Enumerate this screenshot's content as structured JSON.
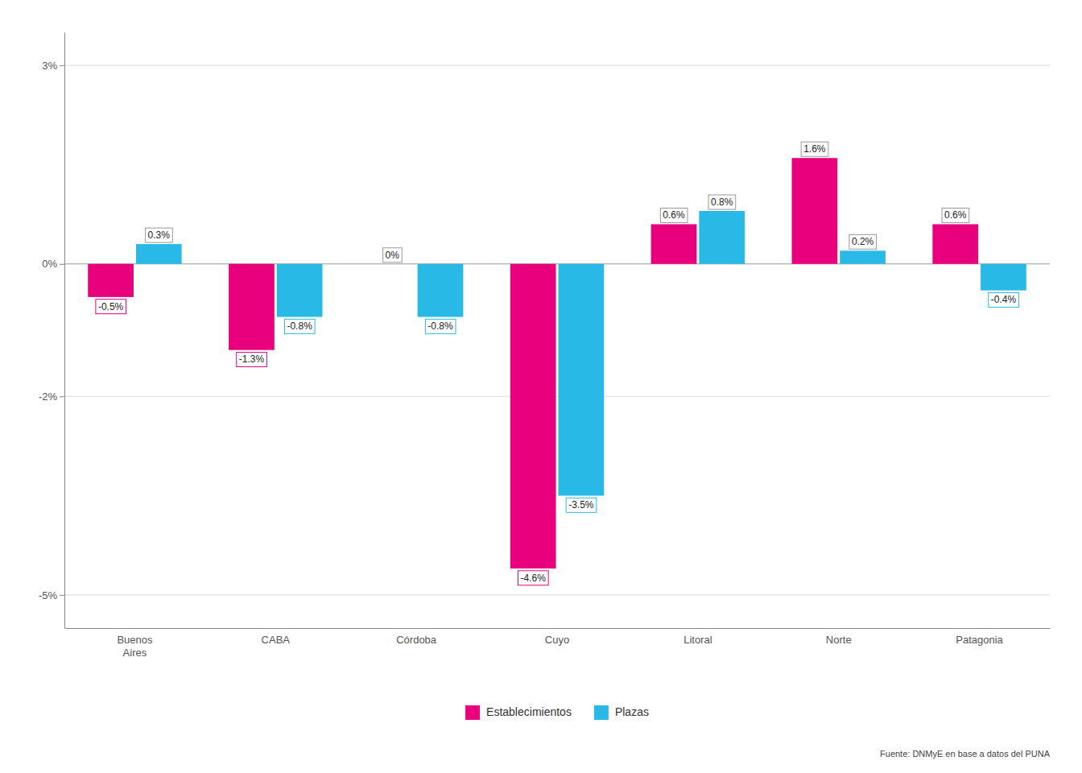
{
  "chart_data": {
    "type": "bar",
    "categories": [
      "Buenos\nAires",
      "CABA",
      "Córdoba",
      "Cuyo",
      "Litoral",
      "Norte",
      "Patagonia"
    ],
    "series": [
      {
        "name": "Establecimientos",
        "color": "#E8007D",
        "values": [
          -0.5,
          -1.3,
          0.0,
          -4.6,
          0.6,
          1.6,
          0.6
        ],
        "value_labels": [
          "-0.5%",
          "-1.3%",
          "0%",
          "-4.6%",
          "0.6%",
          "1.6%",
          "0.6%"
        ]
      },
      {
        "name": "Plazas",
        "color": "#29B9E7",
        "values": [
          0.3,
          -0.8,
          -0.8,
          -3.5,
          0.8,
          0.2,
          -0.4
        ],
        "value_labels": [
          "0.3%",
          "-0.8%",
          "-0.8%",
          "-3.5%",
          "0.8%",
          "0.2%",
          "-0.4%"
        ]
      }
    ],
    "ylim": [
      -5.5,
      3.5
    ],
    "yticks": [
      {
        "value": -5,
        "label": "-5%"
      },
      {
        "value": -2,
        "label": "-2%"
      },
      {
        "value": 0,
        "label": "0%"
      },
      {
        "value": 3,
        "label": "3%"
      }
    ],
    "grid": true,
    "legend": "bottom",
    "data_labels": true,
    "annotations": [
      "Fuente: DNMyE en base a datos del PUNA"
    ]
  }
}
